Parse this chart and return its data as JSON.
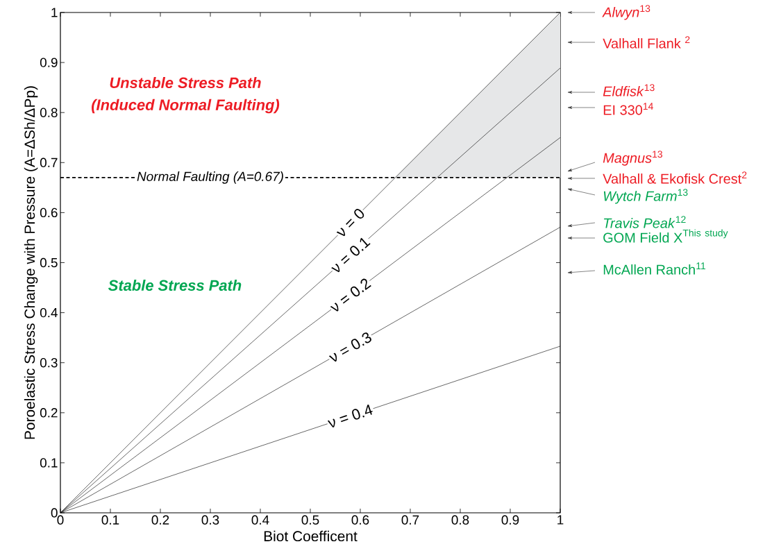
{
  "chart_data": {
    "type": "line",
    "xlabel": "Biot Coefficent",
    "ylabel": "Poroelastic Stress Change with Pressure (A=ΔSh/ΔPp)",
    "x": [
      0,
      1
    ],
    "xlim": [
      0,
      1
    ],
    "ylim": [
      0,
      1
    ],
    "xticks": [
      0,
      0.1,
      0.2,
      0.3,
      0.4,
      0.5,
      0.6,
      0.7,
      0.8,
      0.9,
      1
    ],
    "yticks": [
      0,
      0.1,
      0.2,
      0.3,
      0.4,
      0.5,
      0.6,
      0.7,
      0.8,
      0.9,
      1
    ],
    "series": [
      {
        "name": "ν = 0",
        "color": "#000000",
        "values": [
          0,
          1
        ]
      },
      {
        "name": "ν = 0.1",
        "color": "#000000",
        "values": [
          0,
          0.889
        ]
      },
      {
        "name": "ν = 0.2",
        "color": "#000000",
        "values": [
          0,
          0.75
        ]
      },
      {
        "name": "ν = 0.3",
        "color": "#000000",
        "values": [
          0,
          0.571
        ]
      },
      {
        "name": "ν = 0.4",
        "color": "#000000",
        "values": [
          0,
          0.333
        ]
      }
    ],
    "bands": [
      {
        "axis": "y",
        "from": 0.67,
        "to": 1,
        "color": "#e6e7e8"
      }
    ],
    "ref_lines": [
      {
        "axis": "y",
        "value": 0.67,
        "label": "Normal Faulting (A=0.67)",
        "line_style": "dashed",
        "color": "#000000"
      }
    ],
    "annotations": [
      "Unstable Stress Path",
      "(Induced Normal Faulting)",
      "Stable Stress Path",
      "*Alwyn*$^{13}$",
      "Valhall Flank $^{2}$",
      "*Eldfisk*$^{13}$",
      "EI 330$^{14}$",
      "*Magnus*$^{13}$",
      "Valhall & Ekofisk Crest$^{2}$",
      "*Wytch Farm*$^{13}$",
      "*Travis Peak*$^{12}$",
      "\\mathrm{GOM\\ Field\\ X}^{\\mathrm{This\\ study}}",
      "McAllen Ranch$^{11}$"
    ]
  }
}
